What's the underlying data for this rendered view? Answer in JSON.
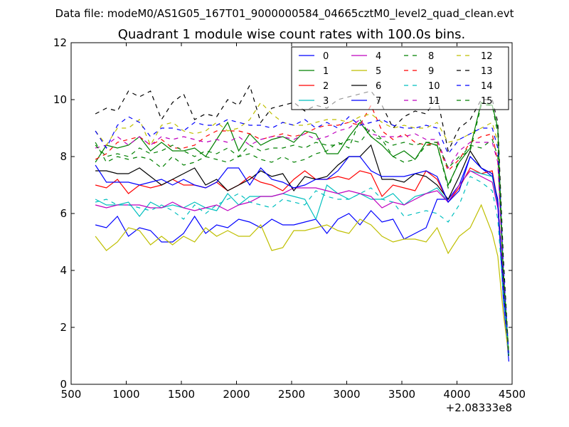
{
  "suptitle": "Data file: modeM0/AS1G05_167T01_9000000584_04665cztM0_level2_quad_clean.evt",
  "chart_data": {
    "type": "line",
    "title": "Quadrant 1 module wise count rates with 100.0s bins.",
    "xlabel": "",
    "ylabel": "",
    "x_offset_label": "+2.08333e8",
    "xlim": [
      500,
      4500
    ],
    "ylim": [
      0,
      12
    ],
    "x_ticks": [
      "500",
      "1000",
      "1500",
      "2000",
      "2500",
      "3000",
      "3500",
      "4000",
      "4500"
    ],
    "y_ticks": [
      "0",
      "2",
      "4",
      "6",
      "8",
      "10",
      "12"
    ],
    "grid": false,
    "legend_position": "top-right",
    "x": [
      720,
      820,
      920,
      1020,
      1120,
      1220,
      1320,
      1420,
      1520,
      1620,
      1720,
      1820,
      1920,
      2020,
      2120,
      2220,
      2320,
      2420,
      2520,
      2620,
      2720,
      2820,
      2920,
      3020,
      3120,
      3220,
      3320,
      3420,
      3520,
      3620,
      3720,
      3820,
      3920,
      4020,
      4120,
      4220,
      4320,
      4370,
      4420,
      4470
    ],
    "series": [
      {
        "name": "0",
        "color": "#0000ff",
        "dash": "solid",
        "values": [
          5.6,
          5.5,
          5.9,
          5.2,
          5.5,
          5.4,
          5.0,
          5.0,
          5.3,
          5.9,
          5.3,
          5.6,
          5.5,
          5.8,
          5.7,
          5.5,
          5.8,
          5.6,
          5.6,
          5.7,
          5.8,
          5.3,
          5.8,
          6.0,
          5.6,
          6.1,
          5.7,
          5.8,
          5.1,
          5.3,
          5.5,
          6.5,
          6.5,
          7.0,
          8.0,
          7.6,
          7.3,
          6.5,
          3.0,
          0.8
        ]
      },
      {
        "name": "1",
        "color": "#008000",
        "dash": "solid",
        "values": [
          7.8,
          8.4,
          8.3,
          8.4,
          8.7,
          8.2,
          8.5,
          8.2,
          8.2,
          8.3,
          8.0,
          8.6,
          9.2,
          8.2,
          8.8,
          8.4,
          8.6,
          8.7,
          8.5,
          8.9,
          8.8,
          8.1,
          8.1,
          8.7,
          9.2,
          8.7,
          8.4,
          8.0,
          8.2,
          7.9,
          8.5,
          8.4,
          7.0,
          7.8,
          8.3,
          9.9,
          9.8,
          9.0,
          4.0,
          1.0
        ]
      },
      {
        "name": "2",
        "color": "#ff0000",
        "dash": "solid",
        "values": [
          7.0,
          6.9,
          7.2,
          6.7,
          7.0,
          6.9,
          7.0,
          7.2,
          7.0,
          7.0,
          6.9,
          7.1,
          6.8,
          7.0,
          7.3,
          7.1,
          7.0,
          6.8,
          7.2,
          7.5,
          7.2,
          7.2,
          7.3,
          7.2,
          7.5,
          7.4,
          6.6,
          7.0,
          6.9,
          6.8,
          7.5,
          7.2,
          6.4,
          6.9,
          7.6,
          7.4,
          7.5,
          6.4,
          3.5,
          1.0
        ]
      },
      {
        "name": "3",
        "color": "#00bfbf",
        "dash": "solid",
        "values": [
          6.5,
          6.3,
          6.3,
          6.4,
          5.9,
          6.4,
          6.2,
          6.3,
          6.2,
          6.4,
          6.2,
          6.1,
          6.7,
          6.3,
          6.6,
          6.6,
          6.6,
          6.7,
          6.6,
          6.5,
          5.8,
          7.0,
          6.7,
          6.5,
          6.7,
          6.5,
          6.5,
          6.7,
          6.3,
          6.6,
          6.7,
          6.9,
          6.4,
          7.0,
          7.5,
          7.4,
          7.3,
          6.3,
          3.2,
          1.0
        ]
      },
      {
        "name": "4",
        "color": "#bf00bf",
        "dash": "solid",
        "values": [
          6.3,
          6.2,
          6.3,
          6.3,
          6.3,
          6.2,
          6.2,
          6.4,
          6.2,
          6.1,
          6.2,
          6.3,
          6.1,
          6.3,
          6.4,
          6.6,
          6.6,
          6.7,
          6.9,
          6.9,
          6.9,
          6.8,
          6.7,
          6.8,
          6.7,
          6.6,
          6.2,
          6.4,
          6.3,
          6.5,
          6.7,
          6.8,
          6.4,
          7.0,
          7.5,
          7.3,
          7.1,
          6.2,
          3.3,
          1.0
        ]
      },
      {
        "name": "5",
        "color": "#bfbf00",
        "dash": "solid",
        "values": [
          5.2,
          4.7,
          5.0,
          5.5,
          5.4,
          4.9,
          5.2,
          4.9,
          5.2,
          5.0,
          5.5,
          5.2,
          5.4,
          5.2,
          5.2,
          5.6,
          4.7,
          4.8,
          5.4,
          5.4,
          5.5,
          5.6,
          5.4,
          5.3,
          5.8,
          5.6,
          5.2,
          5.0,
          5.1,
          5.1,
          5.0,
          5.5,
          4.6,
          5.2,
          5.5,
          6.3,
          5.3,
          4.5,
          2.5,
          1.0
        ]
      },
      {
        "name": "6",
        "color": "#000000",
        "dash": "solid",
        "values": [
          7.5,
          7.5,
          7.4,
          7.4,
          7.6,
          7.3,
          7.0,
          7.2,
          7.4,
          7.6,
          7.0,
          7.2,
          6.8,
          7.0,
          7.2,
          7.5,
          7.3,
          7.4,
          6.8,
          7.3,
          7.2,
          7.3,
          7.7,
          8.0,
          8.0,
          8.4,
          7.2,
          7.2,
          7.1,
          7.4,
          7.3,
          7.0,
          6.5,
          7.3,
          8.2,
          7.6,
          7.4,
          6.4,
          3.5,
          1.0
        ]
      },
      {
        "name": "7",
        "color": "#0000ff",
        "dash": "solid",
        "values": [
          7.7,
          7.1,
          7.1,
          7.1,
          7.0,
          7.1,
          7.2,
          7.0,
          7.2,
          7.0,
          6.9,
          7.1,
          7.6,
          7.6,
          7.0,
          7.6,
          7.2,
          7.1,
          6.9,
          7.0,
          7.2,
          7.2,
          7.5,
          8.0,
          8.0,
          7.5,
          7.3,
          7.3,
          7.3,
          7.4,
          7.5,
          7.3,
          6.4,
          6.8,
          8.0,
          7.6,
          7.4,
          6.4,
          3.3,
          1.0
        ]
      },
      {
        "name": "8",
        "color": "#008000",
        "dash": "dashed",
        "values": [
          8.5,
          7.8,
          8.0,
          7.9,
          8.0,
          7.9,
          7.6,
          8.0,
          7.7,
          7.8,
          8.0,
          7.9,
          7.8,
          8.0,
          8.1,
          7.9,
          7.8,
          8.0,
          7.8,
          7.9,
          8.1,
          8.2,
          8.5,
          8.3,
          9.3,
          8.7,
          8.6,
          8.0,
          7.8,
          7.9,
          8.4,
          8.4,
          6.9,
          7.9,
          8.4,
          8.3,
          8.6,
          8.0,
          4.0,
          1.0
        ]
      },
      {
        "name": "9",
        "color": "#ff0000",
        "dash": "dashed",
        "values": [
          7.9,
          8.1,
          8.5,
          8.6,
          8.7,
          8.4,
          8.6,
          8.3,
          8.3,
          8.4,
          8.7,
          8.9,
          8.9,
          8.9,
          8.8,
          8.6,
          8.7,
          8.8,
          8.7,
          8.8,
          9.0,
          9.1,
          9.1,
          9.2,
          9.1,
          9.8,
          8.9,
          8.6,
          8.8,
          8.5,
          8.4,
          8.5,
          7.5,
          7.9,
          8.5,
          8.7,
          8.8,
          7.8,
          4.0,
          1.0
        ]
      },
      {
        "name": "10",
        "color": "#00bfbf",
        "dash": "dashed",
        "values": [
          6.4,
          6.5,
          6.3,
          6.3,
          6.2,
          6.1,
          6.3,
          6.1,
          5.8,
          6.3,
          6.0,
          6.3,
          6.5,
          6.7,
          6.4,
          6.3,
          6.2,
          6.5,
          6.4,
          6.3,
          6.8,
          6.6,
          6.5,
          6.5,
          6.7,
          6.9,
          6.5,
          6.4,
          5.9,
          6.0,
          6.1,
          6.0,
          5.7,
          6.3,
          7.3,
          7.1,
          6.8,
          5.8,
          3.2,
          1.0
        ]
      },
      {
        "name": "11",
        "color": "#bf00bf",
        "dash": "dashed",
        "values": [
          8.3,
          8.4,
          8.7,
          8.4,
          8.7,
          8.4,
          8.7,
          8.6,
          8.7,
          8.6,
          8.5,
          8.6,
          8.5,
          8.7,
          8.4,
          8.6,
          8.7,
          8.7,
          8.6,
          8.8,
          8.6,
          8.7,
          8.9,
          9.0,
          9.3,
          8.8,
          8.7,
          8.7,
          8.7,
          8.8,
          8.6,
          8.6,
          7.6,
          8.2,
          8.5,
          8.5,
          8.5,
          7.8,
          3.8,
          1.0
        ]
      },
      {
        "name": "12",
        "color": "#bfbf00",
        "dash": "dashed",
        "values": [
          8.9,
          8.4,
          9.0,
          9.0,
          9.3,
          8.4,
          9.1,
          9.2,
          8.9,
          8.8,
          8.9,
          9.2,
          8.9,
          9.0,
          9.3,
          9.9,
          9.5,
          9.2,
          9.1,
          9.1,
          9.2,
          9.3,
          9.3,
          9.2,
          9.4,
          9.5,
          9.2,
          9.0,
          9.1,
          9.0,
          9.0,
          9.2,
          8.5,
          8.6,
          8.8,
          9.0,
          9.2,
          8.5,
          4.2,
          1.0
        ]
      },
      {
        "name": "13",
        "color": "#000000",
        "dash": "dashed",
        "values": [
          9.5,
          9.7,
          9.6,
          10.3,
          10.1,
          10.3,
          9.3,
          9.9,
          10.2,
          9.3,
          9.5,
          9.4,
          10.0,
          9.8,
          10.5,
          9.2,
          9.7,
          9.8,
          9.9,
          9.6,
          9.8,
          9.7,
          10.0,
          10.1,
          10.2,
          10.3,
          9.8,
          9.0,
          9.4,
          9.6,
          9.5,
          10.1,
          8.2,
          9.0,
          9.3,
          10.0,
          10.0,
          9.2,
          4.5,
          1.0
        ]
      },
      {
        "name": "14",
        "color": "#0000ff",
        "dash": "dashed",
        "values": [
          8.9,
          8.3,
          9.1,
          9.4,
          9.2,
          8.7,
          9.0,
          9.0,
          8.9,
          9.2,
          9.1,
          9.1,
          9.3,
          9.2,
          9.1,
          9.1,
          9.0,
          9.2,
          9.1,
          9.3,
          9.0,
          9.2,
          9.0,
          9.4,
          9.1,
          9.2,
          9.3,
          9.1,
          9.0,
          9.0,
          9.1,
          9.0,
          8.1,
          8.6,
          8.8,
          9.0,
          9.0,
          8.3,
          4.2,
          1.0
        ]
      },
      {
        "name": "15",
        "color": "#008000",
        "dash": "dashed",
        "values": [
          8.4,
          8.0,
          8.1,
          8.0,
          8.3,
          8.1,
          8.2,
          8.4,
          8.2,
          8.0,
          8.2,
          8.1,
          8.3,
          8.0,
          8.4,
          8.2,
          8.3,
          8.3,
          8.4,
          8.3,
          8.5,
          8.4,
          8.4,
          8.6,
          8.5,
          9.0,
          8.6,
          8.4,
          8.5,
          8.4,
          8.5,
          8.5,
          7.6,
          8.0,
          8.2,
          9.8,
          9.8,
          8.8,
          4.0,
          1.0
        ]
      }
    ]
  }
}
